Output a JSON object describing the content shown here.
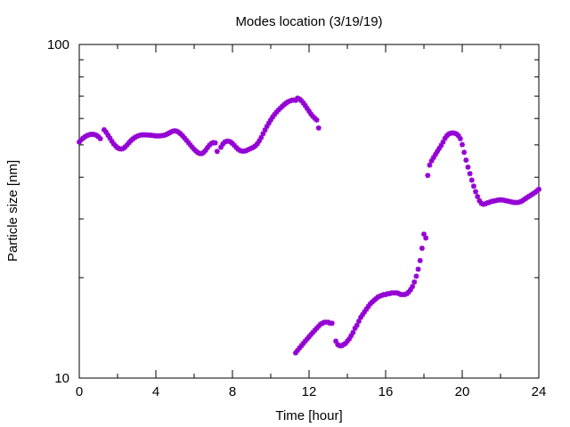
{
  "chart_data": {
    "type": "scatter",
    "title": "Modes location (3/19/19)",
    "xlabel": "Time [hour]",
    "ylabel": "Particle size [nm]",
    "xlim": [
      0,
      24
    ],
    "ylim": [
      10,
      100
    ],
    "yscale": "log",
    "xticks": [
      0,
      4,
      8,
      12,
      16,
      20,
      24
    ],
    "xtick_labels": [
      "0",
      "4",
      "8",
      "12",
      "16",
      "20",
      "24"
    ],
    "yticks": [
      10,
      100
    ],
    "ytick_labels": [
      "10",
      "100"
    ],
    "grid": false,
    "legend": false,
    "marker_color": "#9400d3",
    "series": [
      {
        "values_x": [
          0.0,
          0.1,
          0.2,
          0.3,
          0.4,
          0.5,
          0.6,
          0.7,
          0.8,
          0.9,
          1.0,
          1.1,
          1.3,
          1.4,
          1.5,
          1.6,
          1.7,
          1.8,
          1.9,
          2.0,
          2.1,
          2.2,
          2.3,
          2.4,
          2.5,
          2.6,
          2.7,
          2.8,
          2.9,
          3.0,
          3.1,
          3.2,
          3.3,
          3.4,
          3.5,
          3.6,
          3.7,
          3.8,
          3.9,
          4.0,
          4.1,
          4.2,
          4.3,
          4.4,
          4.5,
          4.6,
          4.7,
          4.8,
          4.9,
          5.0,
          5.1,
          5.2,
          5.3,
          5.4,
          5.5,
          5.6,
          5.7,
          5.8,
          5.9,
          6.0,
          6.1,
          6.2,
          6.3,
          6.4,
          6.5,
          6.6,
          6.7,
          6.8,
          6.9,
          7.0,
          7.1,
          7.2,
          7.4,
          7.5,
          7.6,
          7.7,
          7.8,
          7.9,
          8.0,
          8.1,
          8.2,
          8.3,
          8.4,
          8.5,
          8.6,
          8.7,
          8.8,
          8.9,
          9.0,
          9.1,
          9.2,
          9.3,
          9.4,
          9.5,
          9.6,
          9.7,
          9.8,
          9.9,
          10.0,
          10.1,
          10.2,
          10.3,
          10.4,
          10.5,
          10.6,
          10.7,
          10.8,
          10.9,
          11.0,
          11.1,
          11.2,
          11.3,
          11.4,
          11.5,
          11.6,
          11.7,
          11.8,
          11.9,
          12.0,
          12.1,
          12.2,
          12.3,
          12.4,
          12.5
        ],
        "values_y": [
          51.0,
          51.8,
          52.4,
          52.9,
          53.3,
          53.6,
          53.8,
          53.8,
          53.7,
          53.4,
          52.9,
          52.2,
          55.5,
          54.6,
          53.5,
          52.4,
          51.3,
          50.3,
          49.6,
          49.0,
          48.7,
          48.6,
          48.8,
          49.3,
          50.0,
          50.8,
          51.5,
          52.1,
          52.6,
          53.0,
          53.3,
          53.5,
          53.6,
          53.6,
          53.6,
          53.5,
          53.5,
          53.4,
          53.3,
          53.2,
          53.2,
          53.2,
          53.3,
          53.4,
          53.6,
          53.9,
          54.3,
          54.7,
          55.0,
          55.1,
          54.9,
          54.5,
          53.9,
          53.2,
          52.4,
          51.6,
          50.8,
          50.0,
          49.2,
          48.5,
          47.9,
          47.4,
          47.1,
          47.1,
          47.5,
          48.2,
          49.1,
          49.9,
          50.5,
          50.8,
          50.7,
          47.8,
          49.2,
          50.3,
          51.0,
          51.3,
          51.3,
          51.0,
          50.5,
          49.8,
          49.1,
          48.5,
          48.1,
          47.9,
          47.9,
          48.0,
          48.3,
          48.6,
          48.9,
          49.2,
          49.7,
          50.4,
          51.4,
          52.6,
          54.0,
          55.4,
          56.8,
          58.1,
          59.4,
          60.6,
          61.7,
          62.7,
          63.6,
          64.4,
          65.2,
          66.0,
          66.7,
          67.3,
          67.7,
          68.0,
          68.2,
          68.0,
          69.0,
          68.6,
          67.8,
          66.8,
          65.6,
          64.3,
          63.1,
          61.9,
          60.9,
          60.1,
          59.4,
          56.2
        ]
      },
      {
        "values_x": [
          11.3,
          11.4,
          11.5,
          11.6,
          11.7,
          11.8,
          11.9,
          12.0,
          12.1,
          12.2,
          12.3,
          12.4,
          12.5,
          12.6,
          12.7,
          12.8,
          12.9,
          13.0,
          13.1,
          13.2,
          13.4,
          13.5,
          13.6,
          13.7,
          13.8,
          13.9,
          14.0,
          14.1,
          14.2,
          14.3,
          14.4,
          14.5,
          14.6,
          14.7,
          14.8,
          14.9,
          15.0,
          15.1,
          15.2,
          15.3,
          15.4,
          15.5,
          15.6,
          15.7,
          15.8,
          15.9,
          16.0,
          16.1,
          16.2,
          16.3,
          16.4,
          16.5,
          16.6,
          16.7,
          16.8,
          16.9,
          17.0,
          17.1,
          17.2,
          17.3,
          17.4,
          17.5,
          17.6,
          17.7,
          17.8,
          17.9,
          18.0,
          18.1
        ],
        "values_y": [
          11.9,
          12.1,
          12.3,
          12.5,
          12.7,
          12.9,
          13.1,
          13.3,
          13.5,
          13.7,
          13.9,
          14.1,
          14.3,
          14.5,
          14.6,
          14.7,
          14.7,
          14.7,
          14.6,
          14.6,
          12.9,
          12.6,
          12.5,
          12.5,
          12.6,
          12.7,
          12.9,
          13.1,
          13.4,
          13.7,
          14.1,
          14.4,
          14.8,
          15.2,
          15.5,
          15.8,
          16.1,
          16.4,
          16.7,
          16.9,
          17.1,
          17.3,
          17.5,
          17.6,
          17.7,
          17.8,
          17.8,
          17.9,
          17.9,
          18.0,
          18.0,
          18.0,
          18.0,
          17.9,
          17.8,
          17.8,
          17.8,
          17.9,
          18.1,
          18.4,
          18.8,
          19.4,
          20.2,
          21.2,
          22.5,
          24.5,
          27.0,
          26.3
        ]
      },
      {
        "values_x": [
          18.2,
          18.3,
          18.4,
          18.5,
          18.6,
          18.7,
          18.8,
          18.9,
          19.0,
          19.1,
          19.2,
          19.3,
          19.4,
          19.5,
          19.6,
          19.7,
          19.8,
          19.9,
          20.0,
          20.1,
          20.2,
          20.3,
          20.4,
          20.5,
          20.6,
          20.7,
          20.8,
          20.9,
          21.0,
          21.1,
          21.2,
          21.3,
          21.4,
          21.5,
          21.6,
          21.7,
          21.8,
          21.9,
          22.0,
          22.1,
          22.2,
          22.3,
          22.4,
          22.5,
          22.6,
          22.7,
          22.8,
          22.9,
          23.0,
          23.1,
          23.2,
          23.3,
          23.4,
          23.5,
          23.6,
          23.7,
          23.8,
          23.9,
          24.0
        ],
        "values_y": [
          40.5,
          43.5,
          44.8,
          45.8,
          46.8,
          47.8,
          48.8,
          49.8,
          51.0,
          52.3,
          53.3,
          53.9,
          54.2,
          54.3,
          54.2,
          53.9,
          53.3,
          52.2,
          50.1,
          47.5,
          45.0,
          42.9,
          41.0,
          39.2,
          37.6,
          36.2,
          35.0,
          34.0,
          33.4,
          33.2,
          33.3,
          33.5,
          33.6,
          33.8,
          33.9,
          34.0,
          34.1,
          34.2,
          34.2,
          34.2,
          34.1,
          34.0,
          33.9,
          33.8,
          33.7,
          33.6,
          33.6,
          33.6,
          33.7,
          33.9,
          34.2,
          34.5,
          34.8,
          35.1,
          35.4,
          35.7,
          36.0,
          36.4,
          36.8
        ]
      }
    ]
  }
}
